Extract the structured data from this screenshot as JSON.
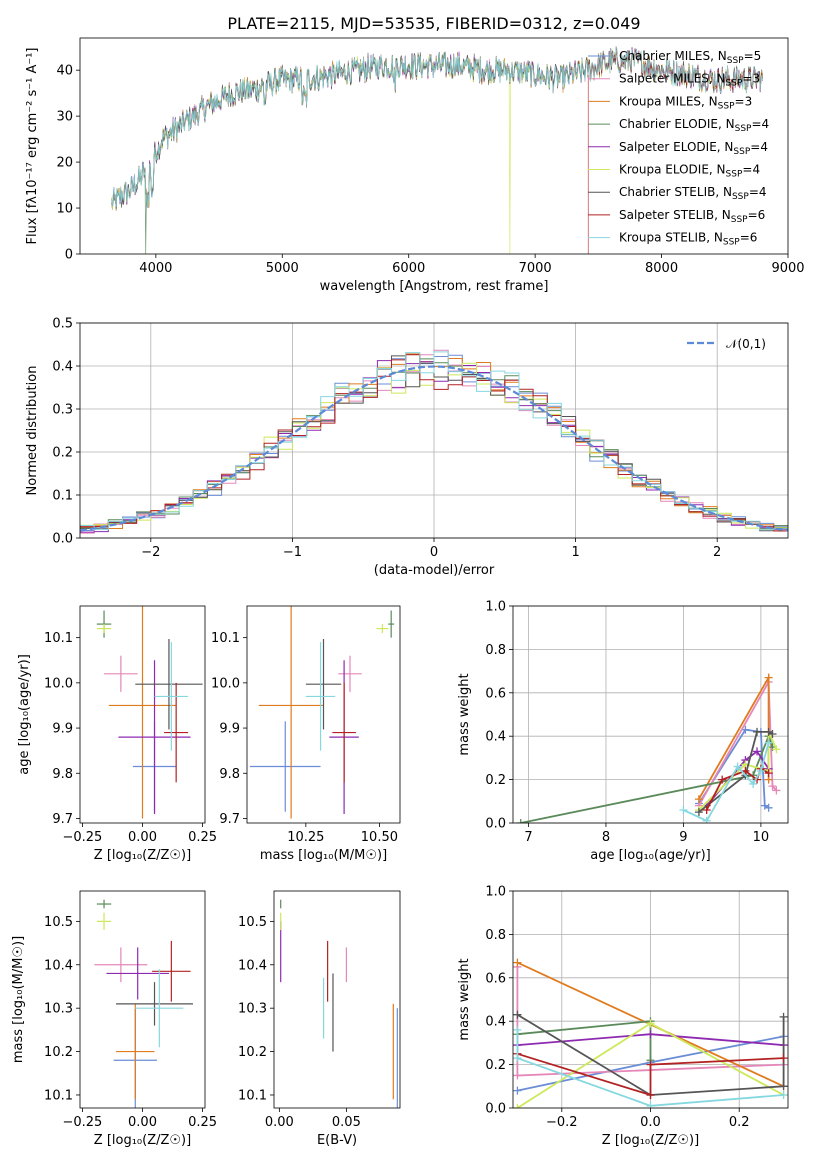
{
  "colors": {
    "Chabrier MILES": "#6a8dd6",
    "Salpeter MILES": "#e587b9",
    "Kroupa MILES": "#e07b1f",
    "Chabrier ELODIE": "#5a8a5a",
    "Salpeter ELODIE": "#8e2ab0",
    "Kroupa ELODIE": "#cde85a",
    "Chabrier STELIB": "#555555",
    "Salpeter STELIB": "#b22222",
    "Kroupa STELIB": "#86d8e0",
    "gaussian": "#5b8ad8"
  },
  "chart_data": [
    {
      "panel": "spectrum",
      "type": "line",
      "title": "PLATE=2115, MJD=53535, FIBERID=0312, z=0.049",
      "xlabel": "wavelength [Angstrom, rest frame]",
      "ylabel": "Flux [fλ10⁻¹⁷ erg cm⁻² s⁻¹ A⁻¹]",
      "xlim": [
        3400,
        9000
      ],
      "ylim": [
        0,
        47
      ],
      "xticks": [
        4000,
        5000,
        6000,
        7000,
        8000,
        9000
      ],
      "yticks": [
        0,
        10,
        20,
        30,
        40
      ],
      "grid": false,
      "legend_position": "right",
      "legend": [
        {
          "name": "Chabrier MILES",
          "nssp": "5"
        },
        {
          "name": "Salpeter MILES",
          "nssp": "3"
        },
        {
          "name": "Kroupa MILES",
          "nssp": "3"
        },
        {
          "name": "Chabrier ELODIE",
          "nssp": "4"
        },
        {
          "name": "Salpeter ELODIE",
          "nssp": "4"
        },
        {
          "name": "Kroupa ELODIE",
          "nssp": "4"
        },
        {
          "name": "Chabrier STELIB",
          "nssp": "4"
        },
        {
          "name": "Salpeter STELIB",
          "nssp": "6"
        },
        {
          "name": "Kroupa STELIB",
          "nssp": "6"
        }
      ],
      "continuum": [
        [
          3650,
          11
        ],
        [
          3800,
          14
        ],
        [
          3950,
          19
        ],
        [
          4050,
          25
        ],
        [
          4200,
          28
        ],
        [
          4400,
          32
        ],
        [
          4600,
          35
        ],
        [
          4800,
          36
        ],
        [
          5000,
          38
        ],
        [
          5200,
          38
        ],
        [
          5400,
          39
        ],
        [
          5600,
          40
        ],
        [
          5800,
          41
        ],
        [
          6000,
          41
        ],
        [
          6200,
          41
        ],
        [
          6400,
          41
        ],
        [
          6600,
          40
        ],
        [
          6800,
          40
        ],
        [
          7000,
          39
        ],
        [
          7200,
          38
        ],
        [
          7400,
          40
        ],
        [
          7600,
          42
        ],
        [
          7800,
          42
        ],
        [
          8000,
          40
        ],
        [
          8200,
          39
        ],
        [
          8400,
          38
        ],
        [
          8600,
          38
        ],
        [
          8800,
          38
        ]
      ],
      "glitches": [
        {
          "series": "Chabrier ELODIE",
          "wavelength": 3920,
          "value": 0
        },
        {
          "series": "Kroupa ELODIE",
          "wavelength": 6800,
          "value": 0
        },
        {
          "series": "Salpeter STELIB",
          "wavelength": 7420,
          "value": 0
        }
      ]
    },
    {
      "panel": "residuals",
      "type": "line",
      "xlabel": "(data-model)/error",
      "ylabel": "Normed distribution",
      "xlim": [
        -2.5,
        2.5
      ],
      "ylim": [
        0,
        0.5
      ],
      "xticks": [
        -2,
        -1,
        0,
        1,
        2
      ],
      "yticks": [
        0.0,
        0.1,
        0.2,
        0.3,
        0.4,
        0.5
      ],
      "grid": true,
      "legend": "𝒩(0,1)",
      "legend_position": "top-right",
      "bin_width": 0.1
    },
    {
      "panel": "age_vs_Z",
      "type": "scatter",
      "xlabel": "Z [log₁₀(Z/Z☉)]",
      "ylabel": "age  [log₁₀(age/yr)]",
      "xlim": [
        -0.26,
        0.26
      ],
      "ylim": [
        9.69,
        10.17
      ],
      "xticks": [
        -0.25,
        0.0,
        0.25
      ],
      "yticks": [
        9.7,
        9.8,
        9.9,
        10.0,
        10.1
      ],
      "points": [
        {
          "series": "Chabrier MILES",
          "x": 0.05,
          "xerr": 0.09,
          "y": 9.815,
          "yerr": 0.1
        },
        {
          "series": "Salpeter MILES",
          "x": -0.09,
          "xerr": 0.07,
          "y": 10.02,
          "yerr": 0.04
        },
        {
          "series": "Kroupa MILES",
          "x": 0.0,
          "xerr": 0.14,
          "y": 9.95,
          "yerr": 0.25
        },
        {
          "series": "Chabrier ELODIE",
          "x": -0.16,
          "xerr": 0.03,
          "y": 10.13,
          "yerr": 0.03
        },
        {
          "series": "Salpeter ELODIE",
          "x": 0.05,
          "xerr": 0.15,
          "y": 9.88,
          "yerr": 0.17
        },
        {
          "series": "Kroupa ELODIE",
          "x": -0.16,
          "xerr": 0.03,
          "y": 10.12,
          "yerr": 0.01
        },
        {
          "series": "Chabrier STELIB",
          "x": 0.11,
          "xerr": 0.14,
          "y": 9.997,
          "yerr": 0.1
        },
        {
          "series": "Salpeter STELIB",
          "x": 0.14,
          "xerr": 0.05,
          "y": 9.89,
          "yerr": 0.11
        },
        {
          "series": "Kroupa STELIB",
          "x": 0.12,
          "xerr": 0.07,
          "y": 9.97,
          "yerr": 0.12
        }
      ]
    },
    {
      "panel": "age_vs_mass",
      "type": "scatter",
      "xlabel": "mass [log₁₀(M/M☉)]",
      "ylabel": "",
      "xlim": [
        10.05,
        10.57
      ],
      "ylim": [
        9.69,
        10.17
      ],
      "xticks": [
        10.25,
        10.5
      ],
      "yticks": [
        9.7,
        9.8,
        9.9,
        10.0,
        10.1
      ],
      "points": [
        {
          "series": "Chabrier MILES",
          "x": 10.18,
          "xerr": 0.12,
          "y": 9.815,
          "yerr": 0.1
        },
        {
          "series": "Salpeter MILES",
          "x": 10.4,
          "xerr": 0.04,
          "y": 10.02,
          "yerr": 0.04
        },
        {
          "series": "Kroupa MILES",
          "x": 10.2,
          "xerr": 0.11,
          "y": 9.95,
          "yerr": 0.25
        },
        {
          "series": "Chabrier ELODIE",
          "x": 10.54,
          "xerr": 0.01,
          "y": 10.13,
          "yerr": 0.03
        },
        {
          "series": "Salpeter ELODIE",
          "x": 10.38,
          "xerr": 0.05,
          "y": 9.88,
          "yerr": 0.17
        },
        {
          "series": "Kroupa ELODIE",
          "x": 10.51,
          "xerr": 0.02,
          "y": 10.12,
          "yerr": 0.01
        },
        {
          "series": "Chabrier STELIB",
          "x": 10.31,
          "xerr": 0.06,
          "y": 9.997,
          "yerr": 0.1
        },
        {
          "series": "Salpeter STELIB",
          "x": 10.38,
          "xerr": 0.04,
          "y": 9.89,
          "yerr": 0.11
        },
        {
          "series": "Kroupa STELIB",
          "x": 10.3,
          "xerr": 0.05,
          "y": 9.97,
          "yerr": 0.12
        }
      ]
    },
    {
      "panel": "weight_vs_age",
      "type": "line",
      "xlabel": "age  [log₁₀(age/yr)]",
      "ylabel": "mass weight",
      "xlim": [
        6.8,
        10.35
      ],
      "ylim": [
        0,
        1
      ],
      "xticks": [
        7,
        8,
        9,
        10
      ],
      "yticks": [
        0.0,
        0.2,
        0.4,
        0.6,
        0.8,
        1.0
      ],
      "grid": true,
      "series": [
        {
          "name": "Chabrier MILES",
          "points": [
            [
              9.2,
              0.09
            ],
            [
              9.8,
              0.43
            ],
            [
              10.0,
              0.42
            ],
            [
              10.05,
              0.08
            ],
            [
              10.1,
              0.07
            ]
          ]
        },
        {
          "name": "Salpeter MILES",
          "points": [
            [
              9.2,
              0.08
            ],
            [
              10.1,
              0.65
            ],
            [
              10.15,
              0.17
            ],
            [
              10.2,
              0.15
            ]
          ]
        },
        {
          "name": "Kroupa MILES",
          "points": [
            [
              9.2,
              0.11
            ],
            [
              10.1,
              0.67
            ],
            [
              10.1,
              0.2
            ]
          ]
        },
        {
          "name": "Chabrier ELODIE",
          "points": [
            [
              6.9,
              0.0
            ],
            [
              9.9,
              0.22
            ],
            [
              10.1,
              0.4
            ],
            [
              10.15,
              0.35
            ]
          ]
        },
        {
          "name": "Salpeter ELODIE",
          "points": [
            [
              9.3,
              0.08
            ],
            [
              9.8,
              0.29
            ],
            [
              9.95,
              0.33
            ],
            [
              10.1,
              0.25
            ]
          ]
        },
        {
          "name": "Kroupa ELODIE",
          "points": [
            [
              9.2,
              0.06
            ],
            [
              9.8,
              0.27
            ],
            [
              10.1,
              0.24
            ],
            [
              10.1,
              0.42
            ],
            [
              10.2,
              0.34
            ]
          ]
        },
        {
          "name": "Chabrier STELIB",
          "points": [
            [
              9.2,
              0.05
            ],
            [
              9.8,
              0.22
            ],
            [
              9.95,
              0.42
            ],
            [
              10.1,
              0.42
            ],
            [
              10.15,
              0.41
            ]
          ]
        },
        {
          "name": "Salpeter STELIB",
          "points": [
            [
              9.3,
              0.06
            ],
            [
              9.5,
              0.2
            ],
            [
              9.8,
              0.24
            ],
            [
              9.95,
              0.2
            ],
            [
              10.0,
              0.25
            ],
            [
              10.1,
              0.23
            ]
          ]
        },
        {
          "name": "Kroupa STELIB",
          "points": [
            [
              9.0,
              0.06
            ],
            [
              9.3,
              0.01
            ],
            [
              9.7,
              0.26
            ],
            [
              9.9,
              0.18
            ],
            [
              10.0,
              0.24
            ],
            [
              10.1,
              0.37
            ]
          ]
        }
      ]
    },
    {
      "panel": "mass_vs_Z",
      "type": "scatter",
      "xlabel": "Z [log₁₀(Z/Z☉)]",
      "ylabel": "mass [log₁₀(M/M☉)]",
      "xlim": [
        -0.26,
        0.26
      ],
      "ylim": [
        10.07,
        10.57
      ],
      "xticks": [
        -0.25,
        0.0,
        0.25
      ],
      "yticks": [
        10.1,
        10.2,
        10.3,
        10.4,
        10.5
      ],
      "points": [
        {
          "series": "Chabrier MILES",
          "x": -0.03,
          "xerr": 0.09,
          "y": 10.18,
          "yerr": 0.12
        },
        {
          "series": "Salpeter MILES",
          "x": -0.09,
          "xerr": 0.11,
          "y": 10.4,
          "yerr": 0.04
        },
        {
          "series": "Kroupa MILES",
          "x": -0.03,
          "xerr": 0.08,
          "y": 10.2,
          "yerr": 0.11
        },
        {
          "series": "Chabrier ELODIE",
          "x": -0.16,
          "xerr": 0.03,
          "y": 10.54,
          "yerr": 0.01
        },
        {
          "series": "Salpeter ELODIE",
          "x": -0.02,
          "xerr": 0.13,
          "y": 10.38,
          "yerr": 0.06
        },
        {
          "series": "Kroupa ELODIE",
          "x": -0.16,
          "xerr": 0.03,
          "y": 10.5,
          "yerr": 0.02
        },
        {
          "series": "Chabrier STELIB",
          "x": 0.05,
          "xerr": 0.16,
          "y": 10.31,
          "yerr": 0.05
        },
        {
          "series": "Salpeter STELIB",
          "x": 0.12,
          "xerr": 0.08,
          "y": 10.385,
          "yerr": 0.07
        },
        {
          "series": "Kroupa STELIB",
          "x": 0.07,
          "xerr": 0.1,
          "y": 10.3,
          "yerr": 0.09
        }
      ]
    },
    {
      "panel": "mass_vs_EBV",
      "type": "scatter",
      "xlabel": "E(B-V)",
      "ylabel": "",
      "xlim": [
        -0.004,
        0.09
      ],
      "ylim": [
        10.07,
        10.57
      ],
      "xticks": [
        0.0,
        0.05
      ],
      "yticks": [
        10.1,
        10.2,
        10.3,
        10.4,
        10.5
      ],
      "points": [
        {
          "series": "Chabrier MILES",
          "x": 0.088,
          "y": 10.18,
          "yerr": 0.12
        },
        {
          "series": "Salpeter MILES",
          "x": 0.05,
          "y": 10.4,
          "yerr": 0.04
        },
        {
          "series": "Kroupa MILES",
          "x": 0.085,
          "y": 10.2,
          "yerr": 0.11
        },
        {
          "series": "Chabrier ELODIE",
          "x": 0.001,
          "y": 10.54,
          "yerr": 0.01
        },
        {
          "series": "Salpeter ELODIE",
          "x": 0.001,
          "y": 10.43,
          "yerr": 0.07
        },
        {
          "series": "Kroupa ELODIE",
          "x": 0.001,
          "y": 10.5,
          "yerr": 0.02
        },
        {
          "series": "Chabrier STELIB",
          "x": 0.04,
          "y": 10.29,
          "yerr": 0.09
        },
        {
          "series": "Salpeter STELIB",
          "x": 0.036,
          "y": 10.385,
          "yerr": 0.07
        },
        {
          "series": "Kroupa STELIB",
          "x": 0.033,
          "y": 10.3,
          "yerr": 0.07
        }
      ]
    },
    {
      "panel": "weight_vs_Z",
      "type": "line",
      "xlabel": "Z [log₁₀(Z/Z☉)]",
      "ylabel": "mass weight",
      "xlim": [
        -0.31,
        0.31
      ],
      "ylim": [
        0,
        1
      ],
      "xticks": [
        -0.2,
        0.0,
        0.2
      ],
      "yticks": [
        0.0,
        0.2,
        0.4,
        0.6,
        0.8,
        1.0
      ],
      "grid": true,
      "series": [
        {
          "name": "Chabrier MILES",
          "points": [
            [
              -0.3,
              0.08
            ],
            [
              0.0,
              0.21
            ],
            [
              0.3,
              0.33
            ]
          ]
        },
        {
          "name": "Salpeter MILES",
          "points": [
            [
              -0.3,
              0.65
            ],
            [
              -0.3,
              0.15
            ],
            [
              0.3,
              0.2
            ]
          ]
        },
        {
          "name": "Kroupa MILES",
          "points": [
            [
              -0.3,
              0.67
            ],
            [
              0.3,
              0.1
            ]
          ]
        },
        {
          "name": "Chabrier ELODIE",
          "points": [
            [
              -0.3,
              0.34
            ],
            [
              0.0,
              0.4
            ],
            [
              0.0,
              0.22
            ]
          ]
        },
        {
          "name": "Salpeter ELODIE",
          "points": [
            [
              -0.3,
              0.29
            ],
            [
              0.0,
              0.34
            ],
            [
              0.3,
              0.29
            ]
          ]
        },
        {
          "name": "Kroupa ELODIE",
          "points": [
            [
              -0.3,
              0.0
            ],
            [
              0.0,
              0.39
            ],
            [
              0.3,
              0.06
            ]
          ]
        },
        {
          "name": "Chabrier STELIB",
          "points": [
            [
              -0.3,
              0.43
            ],
            [
              0.0,
              0.06
            ],
            [
              0.3,
              0.1
            ],
            [
              0.3,
              0.42
            ]
          ]
        },
        {
          "name": "Salpeter STELIB",
          "points": [
            [
              -0.3,
              0.25
            ],
            [
              0.0,
              0.06
            ],
            [
              0.0,
              0.2
            ],
            [
              0.3,
              0.23
            ]
          ]
        },
        {
          "name": "Kroupa STELIB",
          "points": [
            [
              -0.3,
              0.36
            ],
            [
              -0.3,
              0.23
            ],
            [
              0.0,
              0.01
            ],
            [
              0.3,
              0.06
            ]
          ]
        }
      ]
    }
  ]
}
